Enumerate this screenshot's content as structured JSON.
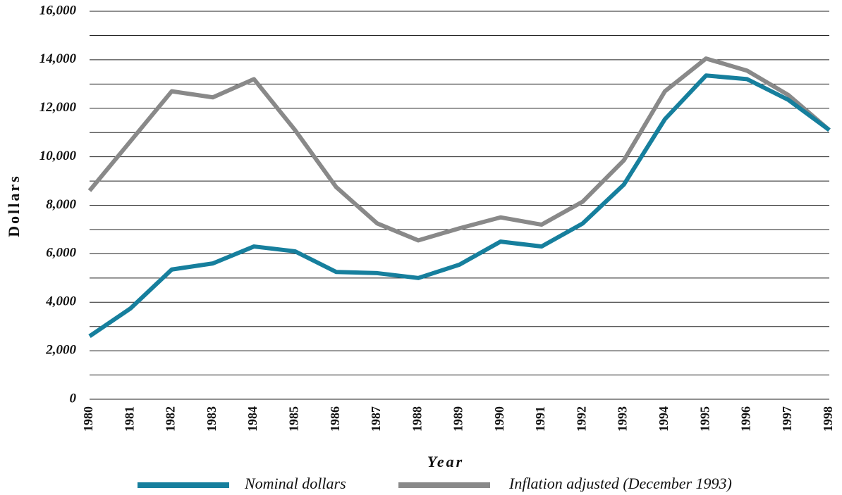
{
  "chart_data": {
    "type": "line",
    "x_label": "Year",
    "y_label": "Dollars",
    "x": [
      1980,
      1981,
      1982,
      1983,
      1984,
      1985,
      1986,
      1987,
      1988,
      1989,
      1990,
      1991,
      1992,
      1993,
      1994,
      1995,
      1996,
      1997,
      1998
    ],
    "xlim": [
      1980,
      1998
    ],
    "xticks": [
      1980,
      1981,
      1982,
      1983,
      1984,
      1985,
      1986,
      1987,
      1988,
      1989,
      1990,
      1991,
      1992,
      1993,
      1994,
      1995,
      1996,
      1997,
      1998
    ],
    "ylim": [
      0,
      16000
    ],
    "yticks": [
      0,
      {
        "value": 2000,
        "label": "2,000"
      },
      {
        "value": 4000,
        "label": "4,000"
      },
      {
        "value": 6000,
        "label": "6,000"
      },
      {
        "value": 8000,
        "label": "8,000"
      },
      {
        "value": 10000,
        "label": "10,000"
      },
      {
        "value": 12000,
        "label": "12,000"
      },
      {
        "value": 14000,
        "label": "14,000"
      },
      {
        "value": 16000,
        "label": "16,000"
      }
    ],
    "minor_gridlines": [
      1000,
      3000,
      5000,
      7000,
      9000,
      11000,
      13000,
      15000
    ],
    "grid": true,
    "legend": "bottom",
    "series": [
      {
        "name": "Nominal dollars",
        "color": "#167f9d",
        "values": [
          2600,
          3750,
          5350,
          5600,
          6300,
          6100,
          5250,
          5200,
          5000,
          5550,
          6500,
          6300,
          7250,
          8850,
          11550,
          13350,
          13200,
          12350,
          11100
        ]
      },
      {
        "name": "Inflation adjusted (December 1993)",
        "color": "#898989",
        "values": [
          8600,
          10650,
          12700,
          12450,
          13200,
          11100,
          8750,
          7250,
          6550,
          7050,
          7500,
          7200,
          8150,
          9850,
          12700,
          14050,
          13550,
          12550,
          11100
        ]
      }
    ]
  }
}
